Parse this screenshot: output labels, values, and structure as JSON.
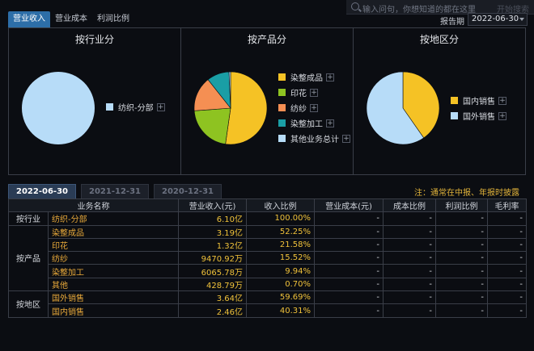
{
  "header": {
    "tabs": [
      "营业收入",
      "营业成本",
      "利润比例"
    ],
    "search_placeholder": "输入问句，你想知道的都在这里",
    "search_button": "开始搜索",
    "period_label": "报告期",
    "period_value": "2022-06-30"
  },
  "panels": [
    {
      "title": "按行业分",
      "legend": [
        {
          "label": "纺织-分部",
          "color": "#b7dcf8"
        }
      ]
    },
    {
      "title": "按产品分",
      "legend": [
        {
          "label": "染整成品",
          "color": "#f5c225"
        },
        {
          "label": "印花",
          "color": "#8ec321"
        },
        {
          "label": "纺纱",
          "color": "#f58f53"
        },
        {
          "label": "染整加工",
          "color": "#1a9ea5"
        },
        {
          "label": "其他业务总计",
          "color": "#b7dcf8"
        }
      ]
    },
    {
      "title": "按地区分",
      "legend": [
        {
          "label": "国内销售",
          "color": "#f5c225"
        },
        {
          "label": "国外销售",
          "color": "#b7dcf8"
        }
      ]
    }
  ],
  "chart_data": [
    {
      "type": "pie",
      "title": "按行业分",
      "categories": [
        "纺织-分部"
      ],
      "values": [
        100.0
      ]
    },
    {
      "type": "pie",
      "title": "按产品分",
      "categories": [
        "染整成品",
        "印花",
        "纺纱",
        "染整加工",
        "其他"
      ],
      "values": [
        52.25,
        21.58,
        15.52,
        9.94,
        0.7
      ]
    },
    {
      "type": "pie",
      "title": "按地区分",
      "categories": [
        "国内销售",
        "国外销售"
      ],
      "values": [
        40.31,
        59.69
      ]
    }
  ],
  "period_tabs": [
    "2022-06-30",
    "2021-12-31",
    "2020-12-31"
  ],
  "note": "注：通常在中报、年报时披露",
  "table": {
    "headers": [
      "业务名称",
      "营业收入(元)",
      "收入比例",
      "营业成本(元)",
      "成本比例",
      "利润比例",
      "毛利率"
    ],
    "groups": [
      {
        "group": "按行业",
        "rows": [
          {
            "name": "纺织-分部",
            "revenue": "6.10亿",
            "ratio": "100.00%"
          }
        ]
      },
      {
        "group": "按产品",
        "rows": [
          {
            "name": "染整成品",
            "revenue": "3.19亿",
            "ratio": "52.25%"
          },
          {
            "name": "印花",
            "revenue": "1.32亿",
            "ratio": "21.58%"
          },
          {
            "name": "纺纱",
            "revenue": "9470.92万",
            "ratio": "15.52%"
          },
          {
            "name": "染整加工",
            "revenue": "6065.78万",
            "ratio": "9.94%"
          },
          {
            "name": "其他",
            "revenue": "428.79万",
            "ratio": "0.70%"
          }
        ]
      },
      {
        "group": "按地区",
        "rows": [
          {
            "name": "国外销售",
            "revenue": "3.64亿",
            "ratio": "59.69%"
          },
          {
            "name": "国内销售",
            "revenue": "2.46亿",
            "ratio": "40.31%"
          }
        ]
      }
    ],
    "dash": "-"
  }
}
